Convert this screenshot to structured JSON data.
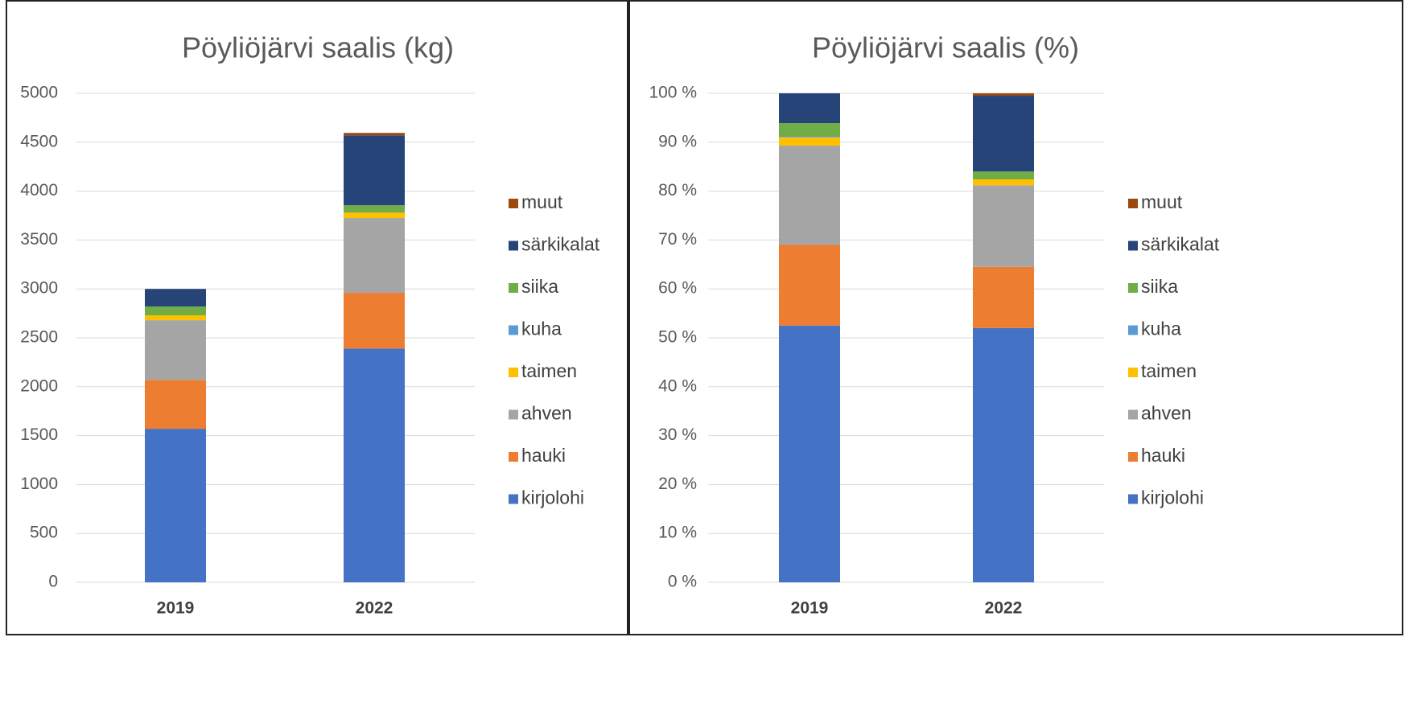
{
  "chart_data": [
    {
      "type": "stacked-bar",
      "title": "Pöyliöjärvi saalis (kg)",
      "categories": [
        "2019",
        "2022"
      ],
      "series": [
        {
          "name": "kirjolohi",
          "color": "#4472c4",
          "values": [
            1570,
            2390
          ]
        },
        {
          "name": "hauki",
          "color": "#ed7d31",
          "values": [
            500,
            570
          ]
        },
        {
          "name": "ahven",
          "color": "#a5a5a5",
          "values": [
            610,
            765
          ]
        },
        {
          "name": "taimen",
          "color": "#ffc000",
          "values": [
            50,
            55
          ]
        },
        {
          "name": "kuha",
          "color": "#5b9bd5",
          "values": [
            0,
            0
          ]
        },
        {
          "name": "siika",
          "color": "#70ad47",
          "values": [
            90,
            75
          ]
        },
        {
          "name": "särkikalat",
          "color": "#264478",
          "values": [
            180,
            715
          ]
        },
        {
          "name": "muut",
          "color": "#9e480e",
          "values": [
            0,
            25
          ]
        }
      ],
      "ylim": [
        0,
        5000
      ],
      "yticks": [
        0,
        500,
        1000,
        1500,
        2000,
        2500,
        3000,
        3500,
        4000,
        4500,
        5000
      ],
      "grid": true,
      "legend": "right"
    },
    {
      "type": "stacked-bar",
      "title": "Pöyliöjärvi saalis (%)",
      "categories": [
        "2019",
        "2022"
      ],
      "series": [
        {
          "name": "kirjolohi",
          "color": "#4472c4",
          "values": [
            52.5,
            52
          ]
        },
        {
          "name": "hauki",
          "color": "#ed7d31",
          "values": [
            16.5,
            12.5
          ]
        },
        {
          "name": "ahven",
          "color": "#a5a5a5",
          "values": [
            20.3,
            16.7
          ]
        },
        {
          "name": "taimen",
          "color": "#ffc000",
          "values": [
            1.7,
            1.2
          ]
        },
        {
          "name": "kuha",
          "color": "#5b9bd5",
          "values": [
            0.2,
            0
          ]
        },
        {
          "name": "siika",
          "color": "#70ad47",
          "values": [
            2.7,
            1.6
          ]
        },
        {
          "name": "särkikalat",
          "color": "#264478",
          "values": [
            6.1,
            15.5
          ]
        },
        {
          "name": "muut",
          "color": "#9e480e",
          "values": [
            0,
            0.5
          ]
        }
      ],
      "ylim": [
        0,
        100
      ],
      "yticks": [
        {
          "value": 0,
          "label": "0 %"
        },
        {
          "value": 10,
          "label": "10 %"
        },
        {
          "value": 20,
          "label": "20 %"
        },
        {
          "value": 30,
          "label": "30 %"
        },
        {
          "value": 40,
          "label": "40 %"
        },
        {
          "value": 50,
          "label": "50 %"
        },
        {
          "value": 60,
          "label": "60 %"
        },
        {
          "value": 70,
          "label": "70 %"
        },
        {
          "value": 80,
          "label": "80 %"
        },
        {
          "value": 90,
          "label": "90 %"
        },
        {
          "value": 100,
          "label": "100 %"
        }
      ],
      "grid": true,
      "legend": "right"
    }
  ]
}
